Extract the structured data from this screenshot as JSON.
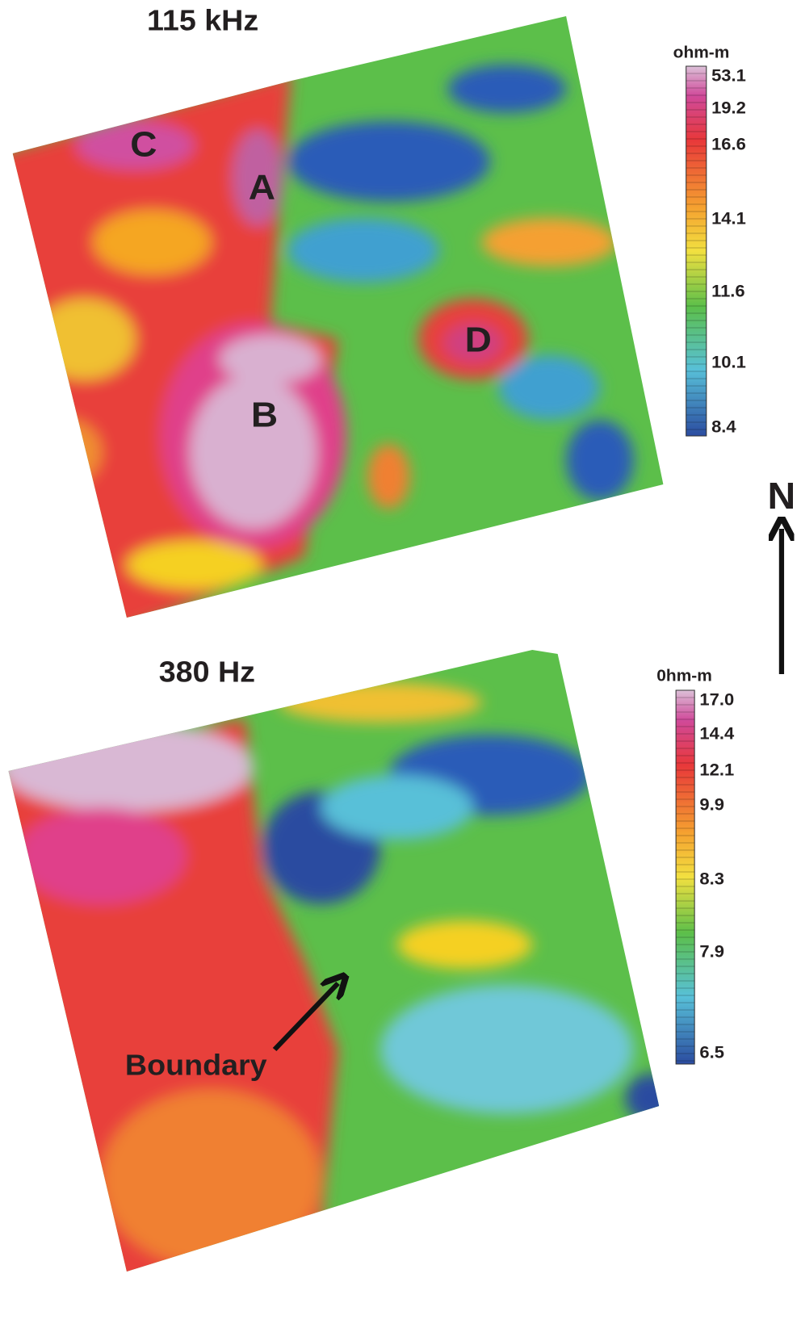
{
  "panels": [
    {
      "title": "115 kHz",
      "unit": "ohm-m",
      "scale": [
        "53.1",
        "19.2",
        "16.6",
        "14.1",
        "11.6",
        "10.1",
        "8.4"
      ],
      "labels": [
        "C",
        "A",
        "B",
        "D"
      ]
    },
    {
      "title": "380 Hz",
      "unit": "0hm-m",
      "scale": [
        "17.0",
        "14.4",
        "12.1",
        "9.9",
        "8.3",
        "7.9",
        "6.5"
      ],
      "annotation": "Boundary"
    }
  ],
  "north": "N"
}
